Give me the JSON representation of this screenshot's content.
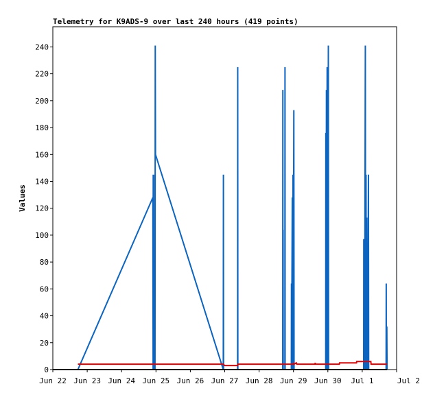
{
  "chart_data": {
    "type": "line",
    "title": "Telemetry for K9ADS-9 over last 240 hours (419 points)",
    "xlabel": "",
    "ylabel": "Values",
    "xlim": [
      "Jun 22 00:00",
      "Jul 2 00:00"
    ],
    "ylim": [
      0,
      255
    ],
    "grid": false,
    "legend": "none",
    "x_ticks": [
      "Jun 22",
      "Jun 23",
      "Jun 24",
      "Jun 25",
      "Jun 26",
      "Jun 27",
      "Jun 28",
      "Jun 29",
      "Jun 30",
      "Jul 1",
      "Jul 2"
    ],
    "y_ticks": [
      0,
      20,
      40,
      60,
      80,
      100,
      120,
      140,
      160,
      180,
      200,
      220,
      240
    ],
    "colors": {
      "blue_series": "#0a64c0",
      "red_series": "#e00000",
      "black_series": "#000000"
    },
    "series": [
      {
        "color": "#0a64c0",
        "points": [
          [
            "Jun 22 17:30",
            0
          ],
          [
            "Jun 24 21:50",
            128
          ],
          [
            "Jun 24 22:00",
            0
          ],
          [
            "Jun 24 22:05",
            145
          ],
          [
            "Jun 24 22:10",
            0
          ],
          [
            "Jun 24 22:15",
            8
          ],
          [
            "Jun 24 22:25",
            0
          ],
          [
            "Jun 24 22:30",
            81
          ],
          [
            "Jun 24 22:40",
            0
          ],
          [
            "Jun 24 22:50",
            81
          ],
          [
            "Jun 24 23:00",
            0
          ],
          [
            "Jun 24 23:10",
            145
          ],
          [
            "Jun 24 23:20",
            0
          ],
          [
            "Jun 24 23:30",
            241
          ],
          [
            "Jun 24 23:40",
            160
          ],
          [
            "Jun 26 23:00",
            0
          ],
          [
            "Jun 26 23:05",
            145
          ],
          [
            "Jun 26 23:10",
            0
          ],
          [
            "Jun 27 09:00",
            0
          ],
          [
            "Jun 27 09:05",
            225
          ],
          [
            "Jun 27 09:10",
            0
          ],
          [
            "Jun 28 16:30",
            0
          ],
          [
            "Jun 28 16:35",
            208
          ],
          [
            "Jun 28 16:40",
            0
          ],
          [
            "Jun 28 16:45",
            104
          ],
          [
            "Jun 28 16:50",
            0
          ],
          [
            "Jun 28 18:00",
            0
          ],
          [
            "Jun 28 18:05",
            225
          ],
          [
            "Jun 28 18:10",
            0
          ],
          [
            "Jun 28 22:30",
            0
          ],
          [
            "Jun 28 22:35",
            64
          ],
          [
            "Jun 28 22:40",
            0
          ],
          [
            "Jun 28 23:10",
            128
          ],
          [
            "Jun 28 23:20",
            0
          ],
          [
            "Jun 28 23:40",
            145
          ],
          [
            "Jun 28 23:50",
            0
          ],
          [
            "Jun 29 00:15",
            193
          ],
          [
            "Jun 29 00:25",
            0
          ],
          [
            "Jun 29 22:30",
            0
          ],
          [
            "Jun 29 22:35",
            176
          ],
          [
            "Jun 29 22:45",
            0
          ],
          [
            "Jun 29 23:00",
            208
          ],
          [
            "Jun 29 23:10",
            0
          ],
          [
            "Jun 29 23:30",
            225
          ],
          [
            "Jun 29 23:40",
            88
          ],
          [
            "Jun 29 23:50",
            225
          ],
          [
            "Jun 30 00:00",
            0
          ],
          [
            "Jun 30 00:20",
            241
          ],
          [
            "Jun 30 00:30",
            0
          ],
          [
            "Jul 1 01:00",
            0
          ],
          [
            "Jul 1 01:05",
            97
          ],
          [
            "Jul 1 01:10",
            0
          ],
          [
            "Jul 1 01:30",
            17
          ],
          [
            "Jul 1 01:40",
            0
          ],
          [
            "Jul 1 02:10",
            241
          ],
          [
            "Jul 1 02:20",
            0
          ],
          [
            "Jul 1 02:40",
            145
          ],
          [
            "Jul 1 02:50",
            0
          ],
          [
            "Jul 1 03:10",
            113
          ],
          [
            "Jul 1 03:20",
            0
          ],
          [
            "Jul 1 03:40",
            81
          ],
          [
            "Jul 1 03:50",
            0
          ],
          [
            "Jul 1 04:20",
            145
          ],
          [
            "Jul 1 04:30",
            0
          ],
          [
            "Jul 1 16:40",
            0
          ],
          [
            "Jul 1 16:45",
            64
          ],
          [
            "Jul 1 16:50",
            0
          ],
          [
            "Jul 1 17:10",
            32
          ],
          [
            "Jul 1 17:20",
            0
          ]
        ]
      },
      {
        "color": "#e00000",
        "points": [
          [
            "Jun 22 17:30",
            4
          ],
          [
            "Jun 26 23:00",
            4
          ],
          [
            "Jun 27 00:00",
            3
          ],
          [
            "Jun 27 09:00",
            3
          ],
          [
            "Jun 27 09:10",
            4
          ],
          [
            "Jun 29 00:00",
            4
          ],
          [
            "Jun 29 00:10",
            5
          ],
          [
            "Jun 29 00:20",
            4
          ],
          [
            "Jun 29 02:00",
            5
          ],
          [
            "Jun 29 02:20",
            4
          ],
          [
            "Jun 29 15:00",
            4
          ],
          [
            "Jun 29 15:10",
            5
          ],
          [
            "Jun 29 15:20",
            4
          ],
          [
            "Jun 30 08:00",
            4
          ],
          [
            "Jun 30 08:10",
            5
          ],
          [
            "Jun 30 20:00",
            5
          ],
          [
            "Jun 30 20:10",
            6
          ],
          [
            "Jul 1 06:00",
            6
          ],
          [
            "Jul 1 06:10",
            4
          ],
          [
            "Jul 1 17:20",
            4
          ]
        ]
      },
      {
        "color": "#000000",
        "points": [
          [
            "Jun 22 00:00",
            0
          ],
          [
            "Jul 1 17:20",
            0
          ]
        ]
      }
    ]
  }
}
